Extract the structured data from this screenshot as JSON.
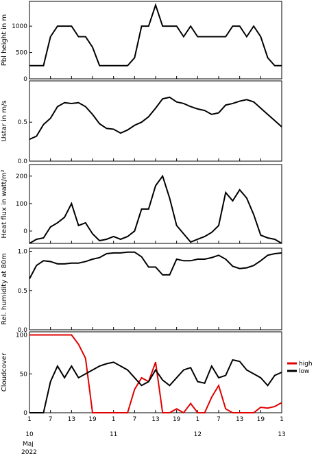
{
  "chart_data": [
    {
      "type": "line",
      "ylabel": "Pbl height in m",
      "xlim": [
        0,
        72
      ],
      "ylim": [
        0,
        1470
      ],
      "yticks": [
        0,
        500,
        1000
      ],
      "xticks": [
        {
          "value": 0,
          "label": "1"
        },
        {
          "value": 6,
          "label": "7"
        },
        {
          "value": 12,
          "label": "13"
        },
        {
          "value": 18,
          "label": "19"
        },
        {
          "value": 24,
          "label": "1"
        },
        {
          "value": 30,
          "label": "7"
        },
        {
          "value": 36,
          "label": "13"
        },
        {
          "value": 42,
          "label": "19"
        },
        {
          "value": 48,
          "label": "1"
        },
        {
          "value": 54,
          "label": "7"
        },
        {
          "value": 60,
          "label": "13"
        },
        {
          "value": 66,
          "label": "19"
        },
        {
          "value": 72,
          "label": "1"
        }
      ],
      "x": [
        0,
        2,
        4,
        6,
        8,
        10,
        12,
        14,
        16,
        18,
        20,
        22,
        24,
        26,
        28,
        30,
        32,
        34,
        36,
        38,
        40,
        42,
        44,
        46,
        48,
        50,
        52,
        54,
        56,
        58,
        60,
        62,
        64,
        66,
        68,
        70,
        72
      ],
      "series": [
        {
          "color": "#000000",
          "values": [
            250,
            250,
            250,
            800,
            1000,
            1000,
            1000,
            800,
            800,
            600,
            250,
            250,
            250,
            250,
            250,
            400,
            1000,
            1000,
            1400,
            1000,
            1000,
            1000,
            800,
            1000,
            800,
            800,
            800,
            800,
            800,
            1000,
            1000,
            800,
            1000,
            800,
            400,
            250,
            250
          ]
        }
      ]
    },
    {
      "type": "line",
      "ylabel": "Ustar in m/s",
      "xlim": [
        0,
        72
      ],
      "ylim": [
        0,
        1.03
      ],
      "yticks": [
        {
          "value": 0,
          "label": "0.0"
        },
        0.5
      ],
      "xticks": [
        {
          "value": 0,
          "label": "1"
        },
        {
          "value": 6,
          "label": "7"
        },
        {
          "value": 12,
          "label": "13"
        },
        {
          "value": 18,
          "label": "19"
        },
        {
          "value": 24,
          "label": "1"
        },
        {
          "value": 30,
          "label": "7"
        },
        {
          "value": 36,
          "label": "13"
        },
        {
          "value": 42,
          "label": "19"
        },
        {
          "value": 48,
          "label": "1"
        },
        {
          "value": 54,
          "label": "7"
        },
        {
          "value": 60,
          "label": "13"
        },
        {
          "value": 66,
          "label": "19"
        },
        {
          "value": 72,
          "label": "1"
        }
      ],
      "x": [
        0,
        2,
        4,
        6,
        8,
        10,
        12,
        14,
        16,
        18,
        20,
        22,
        24,
        26,
        28,
        30,
        32,
        34,
        36,
        38,
        40,
        42,
        44,
        46,
        48,
        50,
        52,
        54,
        56,
        58,
        60,
        62,
        64,
        66,
        68,
        70,
        72
      ],
      "series": [
        {
          "color": "#000000",
          "values": [
            0.28,
            0.32,
            0.47,
            0.55,
            0.7,
            0.75,
            0.74,
            0.75,
            0.7,
            0.6,
            0.48,
            0.42,
            0.41,
            0.36,
            0.4,
            0.46,
            0.5,
            0.57,
            0.68,
            0.8,
            0.82,
            0.76,
            0.74,
            0.7,
            0.67,
            0.65,
            0.6,
            0.62,
            0.72,
            0.74,
            0.77,
            0.79,
            0.76,
            0.68,
            0.6,
            0.52,
            0.44
          ]
        }
      ]
    },
    {
      "type": "line",
      "ylabel": "Heat flux in watt/m²",
      "xlim": [
        0,
        72
      ],
      "ylim": [
        -45,
        242
      ],
      "yticks": [
        0,
        100,
        200
      ],
      "xticks": [
        {
          "value": 0,
          "label": "1"
        },
        {
          "value": 6,
          "label": "7"
        },
        {
          "value": 12,
          "label": "13"
        },
        {
          "value": 18,
          "label": "19"
        },
        {
          "value": 24,
          "label": "1"
        },
        {
          "value": 30,
          "label": "7"
        },
        {
          "value": 36,
          "label": "13"
        },
        {
          "value": 42,
          "label": "19"
        },
        {
          "value": 48,
          "label": "1"
        },
        {
          "value": 54,
          "label": "7"
        },
        {
          "value": 60,
          "label": "13"
        },
        {
          "value": 66,
          "label": "19"
        },
        {
          "value": 72,
          "label": "1"
        }
      ],
      "x": [
        0,
        2,
        4,
        6,
        8,
        10,
        12,
        14,
        16,
        18,
        20,
        22,
        24,
        26,
        28,
        30,
        32,
        34,
        36,
        38,
        40,
        42,
        44,
        46,
        48,
        50,
        52,
        54,
        56,
        58,
        60,
        62,
        64,
        66,
        68,
        70,
        72
      ],
      "series": [
        {
          "color": "#000000",
          "values": [
            -45,
            -30,
            -25,
            15,
            30,
            50,
            100,
            20,
            30,
            -10,
            -35,
            -30,
            -20,
            -30,
            -20,
            0,
            80,
            80,
            165,
            200,
            120,
            20,
            -10,
            -40,
            -30,
            -20,
            -5,
            20,
            140,
            110,
            150,
            120,
            60,
            -15,
            -25,
            -30,
            -45
          ]
        }
      ]
    },
    {
      "type": "line",
      "ylabel": "Rel. humidity at 80m",
      "xlim": [
        0,
        72
      ],
      "ylim": [
        0,
        1.04
      ],
      "yticks": [
        {
          "value": 0,
          "label": "0.0"
        },
        0.5,
        {
          "value": 1,
          "label": "1.0"
        }
      ],
      "xticks": [
        {
          "value": 0,
          "label": "1"
        },
        {
          "value": 6,
          "label": "7"
        },
        {
          "value": 12,
          "label": "13"
        },
        {
          "value": 18,
          "label": "19"
        },
        {
          "value": 24,
          "label": "1"
        },
        {
          "value": 30,
          "label": "7"
        },
        {
          "value": 36,
          "label": "13"
        },
        {
          "value": 42,
          "label": "19"
        },
        {
          "value": 48,
          "label": "1"
        },
        {
          "value": 54,
          "label": "7"
        },
        {
          "value": 60,
          "label": "13"
        },
        {
          "value": 66,
          "label": "19"
        },
        {
          "value": 72,
          "label": "1"
        }
      ],
      "x": [
        0,
        2,
        4,
        6,
        8,
        10,
        12,
        14,
        16,
        18,
        20,
        22,
        24,
        26,
        28,
        30,
        32,
        34,
        36,
        38,
        40,
        42,
        44,
        46,
        48,
        50,
        52,
        54,
        56,
        58,
        60,
        62,
        64,
        66,
        68,
        70,
        72
      ],
      "series": [
        {
          "color": "#000000",
          "values": [
            0.65,
            0.82,
            0.88,
            0.87,
            0.84,
            0.84,
            0.85,
            0.85,
            0.87,
            0.9,
            0.92,
            0.97,
            0.98,
            0.98,
            0.99,
            0.99,
            0.93,
            0.8,
            0.8,
            0.7,
            0.7,
            0.9,
            0.88,
            0.88,
            0.9,
            0.9,
            0.92,
            0.95,
            0.9,
            0.81,
            0.78,
            0.79,
            0.82,
            0.88,
            0.95,
            0.97,
            0.98
          ]
        }
      ]
    },
    {
      "type": "line",
      "ylabel": "Cloudcover",
      "xlim": [
        0,
        72
      ],
      "ylim": [
        0,
        104
      ],
      "yticks": [
        0,
        50,
        100
      ],
      "legend": "right",
      "xticks": [
        {
          "value": 0,
          "label": "1"
        },
        {
          "value": 6,
          "label": "7"
        },
        {
          "value": 12,
          "label": "13"
        },
        {
          "value": 18,
          "label": "19"
        },
        {
          "value": 24,
          "label": "1"
        },
        {
          "value": 30,
          "label": "7"
        },
        {
          "value": 36,
          "label": "13"
        },
        {
          "value": 42,
          "label": "19"
        },
        {
          "value": 48,
          "label": "1"
        },
        {
          "value": 54,
          "label": "7"
        },
        {
          "value": 60,
          "label": "13"
        },
        {
          "value": 66,
          "label": "19"
        },
        {
          "value": 72,
          "label": "1"
        }
      ],
      "xdays": [
        {
          "value": 0,
          "label": "10"
        },
        {
          "value": 24,
          "label": "11"
        },
        {
          "value": 48,
          "label": "12"
        },
        {
          "value": 72,
          "label": "13"
        }
      ],
      "month": "Maj",
      "year": "2022",
      "x": [
        0,
        2,
        4,
        6,
        8,
        10,
        12,
        14,
        16,
        18,
        20,
        22,
        24,
        26,
        28,
        30,
        32,
        34,
        36,
        38,
        40,
        42,
        44,
        46,
        48,
        50,
        52,
        54,
        56,
        58,
        60,
        62,
        64,
        66,
        68,
        70,
        72
      ],
      "series": [
        {
          "name": "high",
          "color": "#e00000",
          "values": [
            100,
            100,
            100,
            100,
            100,
            100,
            100,
            88,
            70,
            0,
            0,
            0,
            0,
            0,
            0,
            30,
            45,
            40,
            65,
            0,
            0,
            5,
            0,
            12,
            0,
            0,
            20,
            35,
            5,
            0,
            0,
            0,
            0,
            7,
            6,
            8,
            13
          ]
        },
        {
          "name": "low",
          "color": "#000000",
          "values": [
            0,
            0,
            0,
            40,
            60,
            45,
            60,
            45,
            50,
            55,
            60,
            63,
            65,
            60,
            55,
            45,
            35,
            40,
            55,
            42,
            35,
            45,
            55,
            58,
            40,
            38,
            60,
            45,
            48,
            68,
            66,
            55,
            50,
            45,
            35,
            48,
            52
          ]
        }
      ]
    }
  ]
}
